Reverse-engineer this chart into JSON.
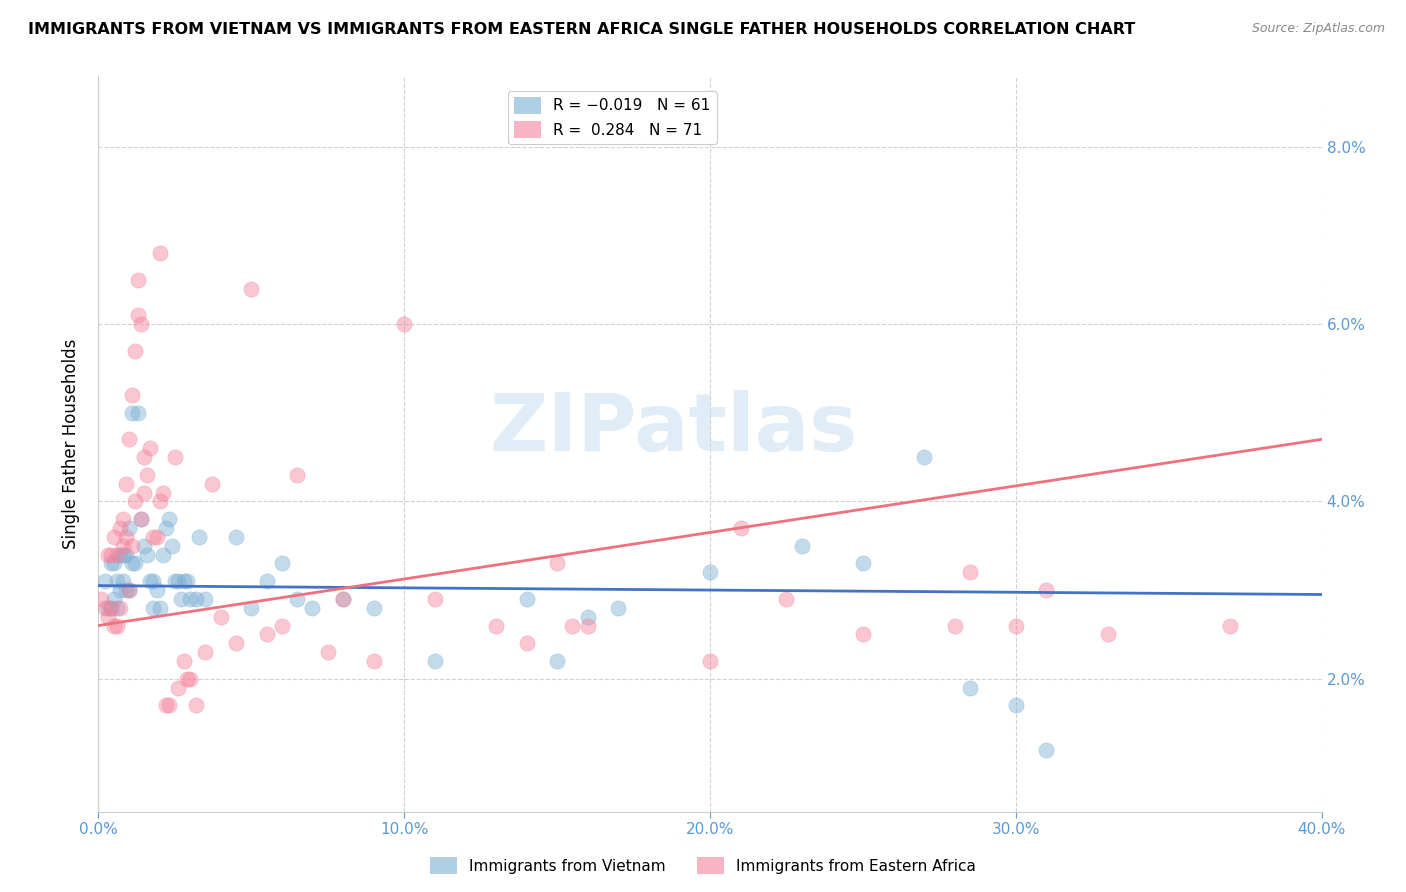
{
  "title": "IMMIGRANTS FROM VIETNAM VS IMMIGRANTS FROM EASTERN AFRICA SINGLE FATHER HOUSEHOLDS CORRELATION CHART",
  "source": "Source: ZipAtlas.com",
  "ylabel": "Single Father Households",
  "xlim": [
    0.0,
    0.4
  ],
  "ylim": [
    0.005,
    0.088
  ],
  "xtick_vals": [
    0.0,
    0.1,
    0.2,
    0.3,
    0.4
  ],
  "xtick_labels": [
    "0.0%",
    "10.0%",
    "20.0%",
    "30.0%",
    "40.0%"
  ],
  "ytick_vals": [
    0.02,
    0.04,
    0.06,
    0.08
  ],
  "ytick_labels": [
    "2.0%",
    "4.0%",
    "6.0%",
    "8.0%"
  ],
  "watermark": "ZIPatlas",
  "vietnam_color": "#7aafd4",
  "eastern_africa_color": "#f4829a",
  "vietnam_line_color": "#4472c4",
  "eastern_africa_line_color": "#f07080",
  "vietnam_line": [
    0.0,
    0.0305,
    0.4,
    0.0295
  ],
  "eastern_africa_line": [
    0.0,
    0.026,
    0.4,
    0.047
  ],
  "vietnam_points": [
    [
      0.002,
      0.031
    ],
    [
      0.003,
      0.028
    ],
    [
      0.004,
      0.028
    ],
    [
      0.004,
      0.033
    ],
    [
      0.005,
      0.029
    ],
    [
      0.005,
      0.033
    ],
    [
      0.006,
      0.028
    ],
    [
      0.006,
      0.031
    ],
    [
      0.007,
      0.03
    ],
    [
      0.007,
      0.034
    ],
    [
      0.008,
      0.031
    ],
    [
      0.008,
      0.034
    ],
    [
      0.009,
      0.03
    ],
    [
      0.009,
      0.034
    ],
    [
      0.01,
      0.03
    ],
    [
      0.01,
      0.037
    ],
    [
      0.011,
      0.033
    ],
    [
      0.011,
      0.05
    ],
    [
      0.012,
      0.033
    ],
    [
      0.013,
      0.05
    ],
    [
      0.014,
      0.038
    ],
    [
      0.015,
      0.035
    ],
    [
      0.016,
      0.034
    ],
    [
      0.017,
      0.031
    ],
    [
      0.018,
      0.031
    ],
    [
      0.018,
      0.028
    ],
    [
      0.019,
      0.03
    ],
    [
      0.02,
      0.028
    ],
    [
      0.021,
      0.034
    ],
    [
      0.022,
      0.037
    ],
    [
      0.023,
      0.038
    ],
    [
      0.024,
      0.035
    ],
    [
      0.025,
      0.031
    ],
    [
      0.026,
      0.031
    ],
    [
      0.027,
      0.029
    ],
    [
      0.028,
      0.031
    ],
    [
      0.029,
      0.031
    ],
    [
      0.03,
      0.029
    ],
    [
      0.032,
      0.029
    ],
    [
      0.033,
      0.036
    ],
    [
      0.035,
      0.029
    ],
    [
      0.045,
      0.036
    ],
    [
      0.05,
      0.028
    ],
    [
      0.055,
      0.031
    ],
    [
      0.06,
      0.033
    ],
    [
      0.065,
      0.029
    ],
    [
      0.07,
      0.028
    ],
    [
      0.08,
      0.029
    ],
    [
      0.09,
      0.028
    ],
    [
      0.11,
      0.022
    ],
    [
      0.14,
      0.029
    ],
    [
      0.15,
      0.022
    ],
    [
      0.16,
      0.027
    ],
    [
      0.17,
      0.028
    ],
    [
      0.2,
      0.032
    ],
    [
      0.23,
      0.035
    ],
    [
      0.25,
      0.033
    ],
    [
      0.27,
      0.045
    ],
    [
      0.285,
      0.019
    ],
    [
      0.3,
      0.017
    ],
    [
      0.31,
      0.012
    ]
  ],
  "eastern_africa_points": [
    [
      0.001,
      0.029
    ],
    [
      0.002,
      0.028
    ],
    [
      0.003,
      0.027
    ],
    [
      0.003,
      0.034
    ],
    [
      0.004,
      0.028
    ],
    [
      0.004,
      0.034
    ],
    [
      0.005,
      0.026
    ],
    [
      0.005,
      0.036
    ],
    [
      0.006,
      0.026
    ],
    [
      0.006,
      0.034
    ],
    [
      0.007,
      0.028
    ],
    [
      0.007,
      0.037
    ],
    [
      0.008,
      0.035
    ],
    [
      0.008,
      0.038
    ],
    [
      0.009,
      0.036
    ],
    [
      0.009,
      0.042
    ],
    [
      0.01,
      0.03
    ],
    [
      0.01,
      0.047
    ],
    [
      0.011,
      0.035
    ],
    [
      0.011,
      0.052
    ],
    [
      0.012,
      0.04
    ],
    [
      0.012,
      0.057
    ],
    [
      0.013,
      0.061
    ],
    [
      0.013,
      0.065
    ],
    [
      0.014,
      0.038
    ],
    [
      0.014,
      0.06
    ],
    [
      0.015,
      0.041
    ],
    [
      0.015,
      0.045
    ],
    [
      0.016,
      0.043
    ],
    [
      0.017,
      0.046
    ],
    [
      0.018,
      0.036
    ],
    [
      0.019,
      0.036
    ],
    [
      0.02,
      0.068
    ],
    [
      0.02,
      0.04
    ],
    [
      0.021,
      0.041
    ],
    [
      0.022,
      0.017
    ],
    [
      0.023,
      0.017
    ],
    [
      0.025,
      0.045
    ],
    [
      0.026,
      0.019
    ],
    [
      0.028,
      0.022
    ],
    [
      0.029,
      0.02
    ],
    [
      0.03,
      0.02
    ],
    [
      0.032,
      0.017
    ],
    [
      0.035,
      0.023
    ],
    [
      0.037,
      0.042
    ],
    [
      0.04,
      0.027
    ],
    [
      0.045,
      0.024
    ],
    [
      0.05,
      0.064
    ],
    [
      0.055,
      0.025
    ],
    [
      0.06,
      0.026
    ],
    [
      0.065,
      0.043
    ],
    [
      0.075,
      0.023
    ],
    [
      0.08,
      0.029
    ],
    [
      0.09,
      0.022
    ],
    [
      0.1,
      0.06
    ],
    [
      0.11,
      0.029
    ],
    [
      0.13,
      0.026
    ],
    [
      0.14,
      0.024
    ],
    [
      0.15,
      0.033
    ],
    [
      0.155,
      0.026
    ],
    [
      0.16,
      0.026
    ],
    [
      0.2,
      0.022
    ],
    [
      0.21,
      0.037
    ],
    [
      0.225,
      0.029
    ],
    [
      0.25,
      0.025
    ],
    [
      0.28,
      0.026
    ],
    [
      0.285,
      0.032
    ],
    [
      0.3,
      0.026
    ],
    [
      0.31,
      0.03
    ],
    [
      0.33,
      0.025
    ],
    [
      0.37,
      0.026
    ]
  ]
}
